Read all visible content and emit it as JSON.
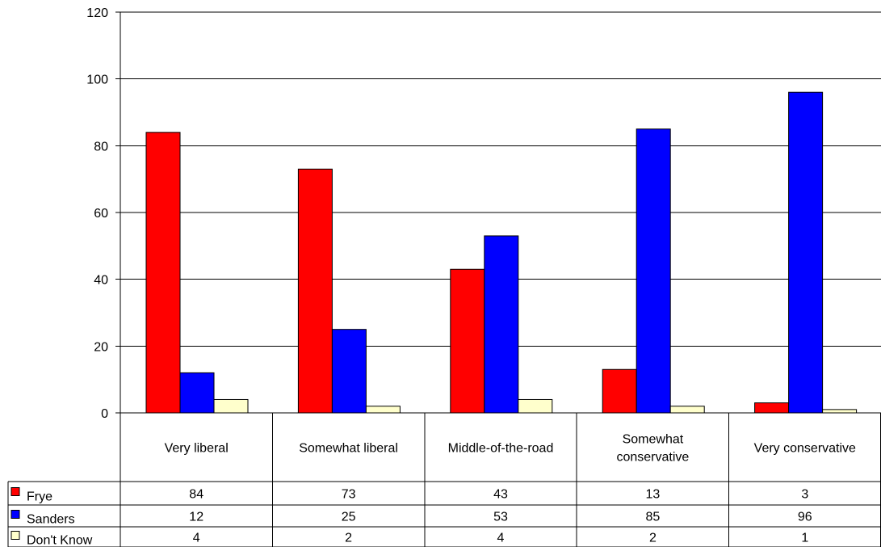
{
  "chart_data": {
    "type": "bar",
    "categories": [
      [
        "Very liberal"
      ],
      [
        "Somewhat liberal"
      ],
      [
        "Middle-of-the-road"
      ],
      [
        "Somewhat",
        "conservative"
      ],
      [
        "Very conservative"
      ]
    ],
    "series": [
      {
        "name": "Frye",
        "values": [
          84,
          73,
          43,
          13,
          3
        ],
        "color": "#ff0000"
      },
      {
        "name": "Sanders",
        "values": [
          12,
          25,
          53,
          85,
          96
        ],
        "color": "#0000ff"
      },
      {
        "name": "Don't Know",
        "values": [
          4,
          2,
          4,
          2,
          1
        ],
        "color": "#ffffcc"
      }
    ],
    "ylim": [
      0,
      120
    ],
    "yticks": [
      0,
      20,
      40,
      60,
      80,
      100,
      120
    ],
    "grid": true,
    "legend": "data-table",
    "title": "",
    "xlabel": "",
    "ylabel": ""
  }
}
